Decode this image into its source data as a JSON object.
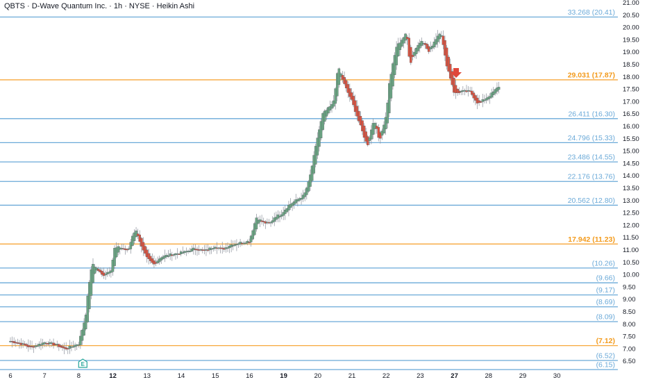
{
  "header": {
    "title": "QBTS · D-Wave Quantum Inc. · 1h · NYSE · Heikin Ashi"
  },
  "colors": {
    "up": "#6ba583",
    "down": "#d75442",
    "blue_line": "#6aa9d8",
    "orange_line": "#f7a73a",
    "arrow": "#e0473a",
    "axis_text": "#131722",
    "marker": "#26a69a"
  },
  "chart_data": {
    "type": "candlestick",
    "style": "Heikin Ashi",
    "ylim": [
      6.05,
      21.2
    ],
    "y_ticks": [
      "6.50",
      "7.00",
      "7.50",
      "8.00",
      "8.50",
      "9.00",
      "9.50",
      "10.00",
      "10.50",
      "11.00",
      "11.50",
      "12.00",
      "12.50",
      "13.00",
      "13.50",
      "14.00",
      "14.50",
      "15.00",
      "15.50",
      "16.00",
      "16.50",
      "17.00",
      "17.50",
      "18.00",
      "18.50",
      "19.00",
      "19.50",
      "20.00",
      "20.50",
      "21.00"
    ],
    "x_ticks": [
      {
        "label": "6",
        "bold": false
      },
      {
        "label": "7",
        "bold": false
      },
      {
        "label": "8",
        "bold": false
      },
      {
        "label": "12",
        "bold": true
      },
      {
        "label": "13",
        "bold": false
      },
      {
        "label": "14",
        "bold": false
      },
      {
        "label": "15",
        "bold": false
      },
      {
        "label": "16",
        "bold": false
      },
      {
        "label": "19",
        "bold": true
      },
      {
        "label": "20",
        "bold": false
      },
      {
        "label": "21",
        "bold": false
      },
      {
        "label": "22",
        "bold": false
      },
      {
        "label": "23",
        "bold": false
      },
      {
        "label": "27",
        "bold": true
      },
      {
        "label": "28",
        "bold": false
      },
      {
        "label": "29",
        "bold": false
      },
      {
        "label": "30",
        "bold": false
      }
    ],
    "levels": [
      {
        "value": 20.41,
        "label": "33.268 (20.41)",
        "color": "blue"
      },
      {
        "value": 17.87,
        "label": "29.031 (17.87)",
        "color": "orange"
      },
      {
        "value": 16.3,
        "label": "26.411 (16.30)",
        "color": "blue"
      },
      {
        "value": 15.33,
        "label": "24.796 (15.33)",
        "color": "blue"
      },
      {
        "value": 14.55,
        "label": "23.486 (14.55)",
        "color": "blue"
      },
      {
        "value": 13.76,
        "label": "22.176 (13.76)",
        "color": "blue"
      },
      {
        "value": 12.8,
        "label": "20.562 (12.80)",
        "color": "blue"
      },
      {
        "value": 11.23,
        "label": "17.942 (11.23)",
        "color": "orange"
      },
      {
        "value": 10.26,
        "label": "(10.26)",
        "color": "blue"
      },
      {
        "value": 9.66,
        "label": "(9.66)",
        "color": "blue"
      },
      {
        "value": 9.17,
        "label": "(9.17)",
        "color": "blue"
      },
      {
        "value": 8.69,
        "label": "(8.69)",
        "color": "blue"
      },
      {
        "value": 8.09,
        "label": "(8.09)",
        "color": "blue"
      },
      {
        "value": 7.12,
        "label": "(7.12)",
        "color": "orange"
      },
      {
        "value": 6.52,
        "label": "(6.52)",
        "color": "blue"
      },
      {
        "value": 6.15,
        "label": "(6.15)",
        "color": "blue"
      }
    ],
    "price_path": [
      [
        0,
        7.3
      ],
      [
        0.3,
        7.2
      ],
      [
        0.6,
        7.05
      ],
      [
        1.0,
        7.25
      ],
      [
        1.35,
        7.15
      ],
      [
        1.6,
        6.98
      ],
      [
        2.0,
        7.2
      ],
      [
        2.2,
        8.3
      ],
      [
        2.3,
        9.6
      ],
      [
        2.4,
        10.45
      ],
      [
        2.7,
        9.95
      ],
      [
        2.95,
        10.2
      ],
      [
        3.05,
        11.05
      ],
      [
        3.2,
        11.1
      ],
      [
        3.45,
        10.95
      ],
      [
        3.6,
        11.7
      ],
      [
        3.7,
        11.75
      ],
      [
        3.85,
        11.05
      ],
      [
        4.0,
        10.65
      ],
      [
        4.2,
        10.4
      ],
      [
        4.4,
        10.7
      ],
      [
        4.7,
        10.8
      ],
      [
        5.1,
        10.9
      ],
      [
        5.4,
        11.05
      ],
      [
        5.7,
        10.95
      ],
      [
        6.0,
        11.15
      ],
      [
        6.2,
        11.0
      ],
      [
        6.45,
        11.2
      ],
      [
        6.8,
        11.3
      ],
      [
        7.0,
        11.35
      ],
      [
        7.2,
        12.3
      ],
      [
        7.4,
        12.1
      ],
      [
        7.6,
        12.05
      ],
      [
        7.75,
        12.35
      ],
      [
        7.9,
        12.4
      ],
      [
        8.15,
        12.8
      ],
      [
        8.6,
        13.2
      ],
      [
        8.75,
        13.8
      ],
      [
        9.0,
        15.6
      ],
      [
        9.15,
        16.5
      ],
      [
        9.45,
        16.9
      ],
      [
        9.6,
        18.4
      ],
      [
        9.8,
        17.6
      ],
      [
        10.0,
        17.0
      ],
      [
        10.25,
        16.0
      ],
      [
        10.45,
        15.2
      ],
      [
        10.65,
        16.3
      ],
      [
        10.8,
        15.4
      ],
      [
        11.0,
        16.4
      ],
      [
        11.1,
        17.8
      ],
      [
        11.3,
        19.2
      ],
      [
        11.6,
        19.75
      ],
      [
        11.7,
        18.5
      ],
      [
        11.85,
        19.1
      ],
      [
        12.05,
        19.5
      ],
      [
        12.25,
        19.0
      ],
      [
        12.4,
        19.4
      ],
      [
        12.6,
        19.85
      ],
      [
        12.75,
        18.6
      ],
      [
        12.95,
        17.6
      ],
      [
        13.0,
        17.3
      ],
      [
        13.2,
        17.4
      ],
      [
        13.45,
        17.4
      ],
      [
        13.7,
        16.9
      ],
      [
        14.05,
        17.25
      ],
      [
        14.3,
        17.6
      ]
    ],
    "annotations": [
      {
        "type": "arrow-down",
        "x": 13.05,
        "y": 18.12
      },
      {
        "type": "event-marker",
        "label": "E",
        "x": 2.12
      }
    ]
  }
}
